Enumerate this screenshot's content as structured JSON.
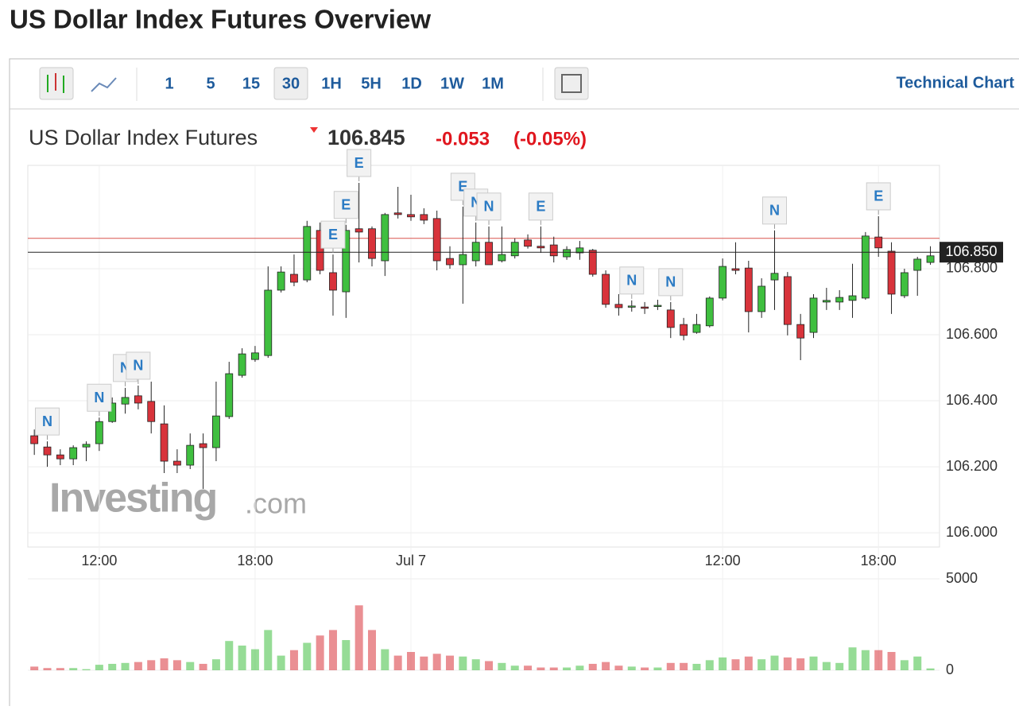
{
  "header": {
    "title": "US Dollar Index Futures Overview"
  },
  "toolbar": {
    "intervals": [
      "1",
      "5",
      "15",
      "30",
      "1H",
      "5H",
      "1D",
      "1W",
      "1M"
    ],
    "selected": "30",
    "link": "Technical Chart"
  },
  "quote": {
    "name": "US Dollar Index Futures",
    "price": "106.845",
    "change": "-0.053",
    "change_pct": "(-0.05%)"
  },
  "watermark": {
    "brand": "Investing",
    "suffix": ".com"
  },
  "chart_data": {
    "type": "candlestick",
    "x": [
      9.5,
      10,
      10.5,
      11,
      11.5,
      12,
      12.5,
      13,
      13.5,
      14,
      14.5,
      15,
      15.5,
      16,
      16.5,
      17,
      17.5,
      18,
      18.5,
      19,
      19.5,
      20,
      20.5,
      21,
      21.5,
      22,
      22.5,
      23,
      23.5,
      24,
      24.5,
      25,
      25.5,
      26,
      26.5,
      27,
      27.5,
      28,
      28.5,
      29,
      29.5,
      30,
      30.5,
      31,
      31.5,
      32,
      32.5,
      33,
      33.5,
      34,
      34.5,
      35,
      35.5,
      36,
      36.5,
      37,
      37.5,
      38,
      38.5,
      39,
      39.5,
      40,
      40.5,
      41,
      41.5,
      42,
      42.5,
      43,
      43.5,
      44
    ],
    "open": [
      106.294,
      106.26,
      106.236,
      106.224,
      106.26,
      106.27,
      106.337,
      106.39,
      106.415,
      106.398,
      106.33,
      106.217,
      106.205,
      106.27,
      106.258,
      106.352,
      106.477,
      106.525,
      106.537,
      106.735,
      106.783,
      106.766,
      106.916,
      106.788,
      106.73,
      106.921,
      106.921,
      106.824,
      106.969,
      106.964,
      106.964,
      106.952,
      106.831,
      106.812,
      106.824,
      106.88,
      106.824,
      106.839,
      106.887,
      106.868,
      106.872,
      106.836,
      106.848,
      106.856,
      106.783,
      106.692,
      106.687,
      106.684,
      106.687,
      106.675,
      106.631,
      106.607,
      106.627,
      106.711,
      106.8,
      106.802,
      106.67,
      106.766,
      106.776,
      106.631,
      106.607,
      106.699,
      106.699,
      106.704,
      106.711,
      106.896,
      106.853,
      106.718,
      106.795,
      106.819
    ],
    "high": [
      106.313,
      106.277,
      106.253,
      106.265,
      106.277,
      106.349,
      106.41,
      106.439,
      106.446,
      106.458,
      106.386,
      106.253,
      106.301,
      106.301,
      106.458,
      106.518,
      106.559,
      106.566,
      106.807,
      106.807,
      106.843,
      106.945,
      106.94,
      106.843,
      106.933,
      107.06,
      106.928,
      106.969,
      107.048,
      107.024,
      106.983,
      106.976,
      106.868,
      106.988,
      106.94,
      106.928,
      106.928,
      106.892,
      106.904,
      106.928,
      106.897,
      106.868,
      106.884,
      106.86,
      106.795,
      106.723,
      106.704,
      106.699,
      106.706,
      106.699,
      106.651,
      106.663,
      106.716,
      106.831,
      106.88,
      106.824,
      106.771,
      106.916,
      106.79,
      106.663,
      106.723,
      106.742,
      106.735,
      106.815,
      106.911,
      106.959,
      106.88,
      106.8,
      106.836,
      106.868
    ],
    "low": [
      106.236,
      106.2,
      106.205,
      106.205,
      106.217,
      106.248,
      106.333,
      106.361,
      106.374,
      106.301,
      106.181,
      106.181,
      106.193,
      106.133,
      106.217,
      106.345,
      106.47,
      106.518,
      106.53,
      106.728,
      106.747,
      106.759,
      106.783,
      106.658,
      106.651,
      106.819,
      106.807,
      106.778,
      106.952,
      106.945,
      106.935,
      106.795,
      106.8,
      106.694,
      106.807,
      106.812,
      106.819,
      106.831,
      106.861,
      106.848,
      106.819,
      106.827,
      106.827,
      106.776,
      106.682,
      106.658,
      106.67,
      106.663,
      106.675,
      106.59,
      106.583,
      106.603,
      106.622,
      106.704,
      106.783,
      106.607,
      106.651,
      106.675,
      106.598,
      106.523,
      106.59,
      106.675,
      106.675,
      106.651,
      106.706,
      106.836,
      106.663,
      106.711,
      106.718,
      106.812
    ],
    "close": [
      106.27,
      106.236,
      106.224,
      106.258,
      106.268,
      106.337,
      106.393,
      106.41,
      106.393,
      106.337,
      106.217,
      106.205,
      106.265,
      106.258,
      106.354,
      106.482,
      106.542,
      106.545,
      106.735,
      106.79,
      106.759,
      106.928,
      106.795,
      106.735,
      106.916,
      106.911,
      106.831,
      106.964,
      106.964,
      106.957,
      106.947,
      106.824,
      106.812,
      106.843,
      106.88,
      106.812,
      106.843,
      106.88,
      106.868,
      106.863,
      106.839,
      106.858,
      106.863,
      106.783,
      106.692,
      106.682,
      106.687,
      106.68,
      106.689,
      106.622,
      106.598,
      106.631,
      106.711,
      106.807,
      106.795,
      106.67,
      106.747,
      106.786,
      106.631,
      106.59,
      106.711,
      106.704,
      106.713,
      106.718,
      106.899,
      106.863,
      106.723,
      106.788,
      106.829,
      106.839
    ],
    "volume": [
      200,
      120,
      120,
      120,
      60,
      300,
      350,
      400,
      450,
      550,
      650,
      550,
      450,
      350,
      600,
      1600,
      1350,
      1150,
      2200,
      800,
      1100,
      1500,
      1900,
      2200,
      1650,
      3550,
      2200,
      1150,
      800,
      1000,
      750,
      900,
      800,
      750,
      600,
      500,
      400,
      250,
      250,
      150,
      150,
      150,
      250,
      350,
      450,
      250,
      200,
      150,
      150,
      400,
      400,
      350,
      550,
      700,
      600,
      750,
      600,
      800,
      700,
      650,
      750,
      450,
      400,
      1250,
      1100,
      1100,
      1000,
      550,
      750,
      100
    ],
    "events": [
      {
        "x": 10,
        "label": "N"
      },
      {
        "x": 12,
        "label": "N"
      },
      {
        "x": 13,
        "label": "N"
      },
      {
        "x": 13.5,
        "label": "N"
      },
      {
        "x": 21,
        "label": "E"
      },
      {
        "x": 21.5,
        "label": "E"
      },
      {
        "x": 22,
        "label": "E"
      },
      {
        "x": 26,
        "label": "E"
      },
      {
        "x": 26.5,
        "label": "N"
      },
      {
        "x": 27,
        "label": "N"
      },
      {
        "x": 29,
        "label": "E"
      },
      {
        "x": 32.5,
        "label": "N"
      },
      {
        "x": 34,
        "label": "N"
      },
      {
        "x": 38,
        "label": "N"
      },
      {
        "x": 42,
        "label": "E"
      }
    ],
    "last_price": {
      "value": 106.85,
      "label": "106.850"
    },
    "ref_line": 106.892,
    "up_color": "#3fbf3f",
    "down_color": "#d8333b",
    "xlim": [
      9.25,
      44.35
    ],
    "xticks": [
      {
        "value": 12,
        "label": "12:00"
      },
      {
        "value": 18,
        "label": "18:00"
      },
      {
        "value": 24,
        "label": "Jul 7"
      },
      {
        "value": 36,
        "label": "12:00"
      },
      {
        "value": 42,
        "label": "18:00"
      }
    ],
    "ylim": [
      105.957,
      107.113
    ],
    "yticks": [
      {
        "value": 106,
        "label": "106.000"
      },
      {
        "value": 106.2,
        "label": "106.200"
      },
      {
        "value": 106.4,
        "label": "106.400"
      },
      {
        "value": 106.6,
        "label": "106.600"
      },
      {
        "value": 106.8,
        "label": "106.800"
      }
    ],
    "y2lim": [
      0,
      5000
    ],
    "y2ticks": [
      0,
      5000
    ],
    "grid": true
  }
}
